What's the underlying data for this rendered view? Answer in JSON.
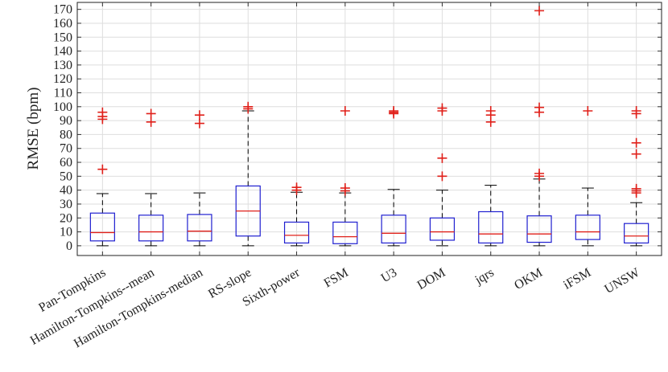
{
  "chart_data": {
    "type": "box",
    "title": "",
    "xlabel": "",
    "ylabel": "RMSE (bpm)",
    "ylim": [
      -7,
      175
    ],
    "yticks": [
      0,
      10,
      20,
      30,
      40,
      50,
      60,
      70,
      80,
      90,
      100,
      110,
      120,
      130,
      140,
      150,
      160,
      170
    ],
    "grid": true,
    "categories": [
      "Pan-Tompkins",
      "Hamilton-Tompkins--mean",
      "Hamilton-Tompkins-median",
      "RS-slope",
      "Sixth-power",
      "FSM",
      "U3",
      "DOM",
      "jqrs",
      "OKM",
      "iFSM",
      "UNSW"
    ],
    "boxes": [
      {
        "label": "Pan-Tompkins",
        "whisker_low": 0,
        "q1": 3.5,
        "median": 9.5,
        "q3": 23.5,
        "whisker_high": 37.5,
        "outliers": [
          55,
          91,
          93,
          96
        ]
      },
      {
        "label": "Hamilton-Tompkins--mean",
        "whisker_low": 0,
        "q1": 3.5,
        "median": 10,
        "q3": 22,
        "whisker_high": 37.5,
        "outliers": [
          89,
          95
        ]
      },
      {
        "label": "Hamilton-Tompkins-median",
        "whisker_low": 0,
        "q1": 3.5,
        "median": 10.5,
        "q3": 22.5,
        "whisker_high": 38,
        "outliers": [
          88,
          94
        ]
      },
      {
        "label": "RS-slope",
        "whisker_low": 0,
        "q1": 7,
        "median": 25,
        "q3": 43,
        "whisker_high": 97,
        "outliers": [
          98.5,
          100
        ]
      },
      {
        "label": "Sixth-power",
        "whisker_low": 0,
        "q1": 2,
        "median": 7.5,
        "q3": 17,
        "whisker_high": 38.5,
        "outliers": [
          40,
          42
        ]
      },
      {
        "label": "FSM",
        "whisker_low": 0,
        "q1": 1.5,
        "median": 6.5,
        "q3": 17,
        "whisker_high": 38,
        "outliers": [
          39.5,
          41.5,
          97
        ]
      },
      {
        "label": "U3",
        "whisker_low": 0,
        "q1": 2,
        "median": 9,
        "q3": 22,
        "whisker_high": 40.5,
        "outliers": [
          95,
          96,
          97
        ]
      },
      {
        "label": "DOM",
        "whisker_low": 0,
        "q1": 4,
        "median": 10,
        "q3": 20,
        "whisker_high": 40,
        "outliers": [
          50,
          63,
          97,
          99
        ]
      },
      {
        "label": "jqrs",
        "whisker_low": 0,
        "q1": 2,
        "median": 8.5,
        "q3": 24.5,
        "whisker_high": 43.5,
        "outliers": [
          89,
          94,
          97
        ]
      },
      {
        "label": "OKM",
        "whisker_low": 0,
        "q1": 2.5,
        "median": 8.5,
        "q3": 21.5,
        "whisker_high": 48,
        "outliers": [
          50,
          52,
          96,
          99.5,
          169
        ]
      },
      {
        "label": "iFSM",
        "whisker_low": 0,
        "q1": 4.5,
        "median": 10,
        "q3": 22,
        "whisker_high": 41.5,
        "outliers": [
          97
        ]
      },
      {
        "label": "UNSW",
        "whisker_low": 0,
        "q1": 2,
        "median": 7,
        "q3": 16,
        "whisker_high": 31,
        "outliers": [
          38,
          39.5,
          41,
          66,
          74,
          95,
          97
        ]
      }
    ]
  }
}
